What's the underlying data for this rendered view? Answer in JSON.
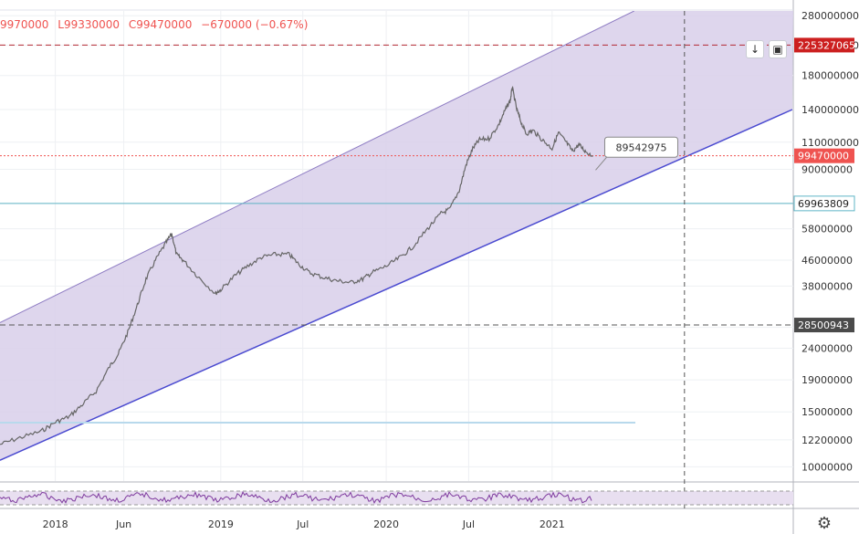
{
  "ohlc": {
    "o": "9970000",
    "l": "L99330000",
    "c": "C99470000",
    "change": "−670000 (−0.67%)"
  },
  "chart_data": {
    "type": "line",
    "title": "",
    "scale": "log",
    "ylim": [
      9000000,
      290000000
    ],
    "xlim": [
      "2017-09-01",
      "2022-06-15"
    ],
    "x_tick_labels": [
      "2018",
      "Jun",
      "2019",
      "Jul",
      "2020",
      "Jul",
      "2021"
    ],
    "x_tick_dates": [
      "2018-01-01",
      "2018-06-01",
      "2019-01-01",
      "2019-07-01",
      "2020-01-01",
      "2020-07-01",
      "2021-01-01"
    ],
    "y_tick_values": [
      10000000,
      12200000,
      15000000,
      19000000,
      24000000,
      28000000,
      38000000,
      46000000,
      58000000,
      70000000,
      90000000,
      110000000,
      140000000,
      180000000,
      225000000,
      280000000
    ],
    "y_tick_labels": [
      "10000000",
      "12200000",
      "15000000",
      "19000000",
      "24000000",
      "28000000",
      "38000000",
      "46000000",
      "58000000",
      "70000000",
      "90000000",
      "110000000",
      "140000000",
      "180000000",
      "225000000",
      "280000000"
    ],
    "series": [
      {
        "values": [
          [
            "2017-09-01",
            11800000
          ],
          [
            "2017-10-15",
            12400000
          ],
          [
            "2017-12-01",
            13000000
          ],
          [
            "2018-01-01",
            13900000
          ],
          [
            "2018-02-01",
            14500000
          ],
          [
            "2018-03-01",
            15800000
          ],
          [
            "2018-04-01",
            17500000
          ],
          [
            "2018-05-01",
            21000000
          ],
          [
            "2018-05-20",
            23000000
          ],
          [
            "2018-06-10",
            27000000
          ],
          [
            "2018-07-01",
            33000000
          ],
          [
            "2018-07-20",
            40000000
          ],
          [
            "2018-08-10",
            46000000
          ],
          [
            "2018-09-01",
            52000000
          ],
          [
            "2018-09-15",
            56000000
          ],
          [
            "2018-09-25",
            48000000
          ],
          [
            "2018-10-10",
            46000000
          ],
          [
            "2018-11-10",
            41000000
          ],
          [
            "2018-12-20",
            36000000
          ],
          [
            "2019-01-01",
            37000000
          ],
          [
            "2019-02-01",
            41000000
          ],
          [
            "2019-03-01",
            44000000
          ],
          [
            "2019-04-01",
            47000000
          ],
          [
            "2019-05-01",
            48000000
          ],
          [
            "2019-06-01",
            48000000
          ],
          [
            "2019-06-20",
            45000000
          ],
          [
            "2019-07-15",
            42000000
          ],
          [
            "2019-08-15",
            40500000
          ],
          [
            "2019-09-15",
            39500000
          ],
          [
            "2019-10-15",
            39000000
          ],
          [
            "2019-11-10",
            40000000
          ],
          [
            "2019-12-01",
            42000000
          ],
          [
            "2020-01-01",
            44000000
          ],
          [
            "2020-02-01",
            47000000
          ],
          [
            "2020-03-01",
            51000000
          ],
          [
            "2020-04-01",
            58000000
          ],
          [
            "2020-05-01",
            65000000
          ],
          [
            "2020-05-20",
            67000000
          ],
          [
            "2020-06-10",
            77000000
          ],
          [
            "2020-06-25",
            93000000
          ],
          [
            "2020-07-10",
            105000000
          ],
          [
            "2020-07-25",
            112000000
          ],
          [
            "2020-08-15",
            113000000
          ],
          [
            "2020-09-05",
            125000000
          ],
          [
            "2020-09-20",
            140000000
          ],
          [
            "2020-10-01",
            150000000
          ],
          [
            "2020-10-05",
            165000000
          ],
          [
            "2020-10-15",
            140000000
          ],
          [
            "2020-10-25",
            127000000
          ],
          [
            "2020-11-05",
            117000000
          ],
          [
            "2020-11-20",
            120000000
          ],
          [
            "2020-12-10",
            112000000
          ],
          [
            "2021-01-01",
            105000000
          ],
          [
            "2021-01-15",
            118000000
          ],
          [
            "2021-02-01",
            110000000
          ],
          [
            "2021-02-15",
            103000000
          ],
          [
            "2021-03-01",
            108000000
          ],
          [
            "2021-03-15",
            103000000
          ],
          [
            "2021-04-01",
            99470000
          ]
        ]
      }
    ],
    "channel": {
      "upper": [
        [
          "2017-09-01",
          29000000
        ],
        [
          "2021-07-01",
          290000000
        ]
      ],
      "lower": [
        [
          "2017-09-01",
          10500000
        ],
        [
          "2022-06-15",
          140000000
        ]
      ]
    },
    "horizontal_lines": [
      {
        "value": 225327065,
        "label": "225327065",
        "style": "dashed",
        "color": "#b22833"
      },
      {
        "value": 99470000,
        "label": "99470000",
        "style": "dotted",
        "color": "#ef5350"
      },
      {
        "value": 69963809,
        "label": "69963809",
        "style": "solid",
        "color": "#5fb5c6"
      },
      {
        "value": 28500943,
        "label": "28500943",
        "style": "dashed",
        "color": "#555555"
      }
    ],
    "callout": {
      "label": "89542975",
      "date": "2021-04-07",
      "value": 89542975
    },
    "vertical_marker": {
      "date": "2021-10-20"
    },
    "indicator": {
      "type": "rsi"
    },
    "colors": {
      "channel_fill": "#d8cfea",
      "channel_border": "#8e7cc3",
      "lower_line": "#4a4ad0",
      "price_line": "#666666",
      "price_label_bg": "#ef5350",
      "resistance_label_bg": "#cc1f1f",
      "support_label_bg": "#4a4a4a",
      "indicator_line": "#7e3a9e"
    }
  },
  "icons": {
    "download": "down-arrow-icon",
    "fullscreen": "fullscreen-icon",
    "settings": "gear-icon"
  }
}
